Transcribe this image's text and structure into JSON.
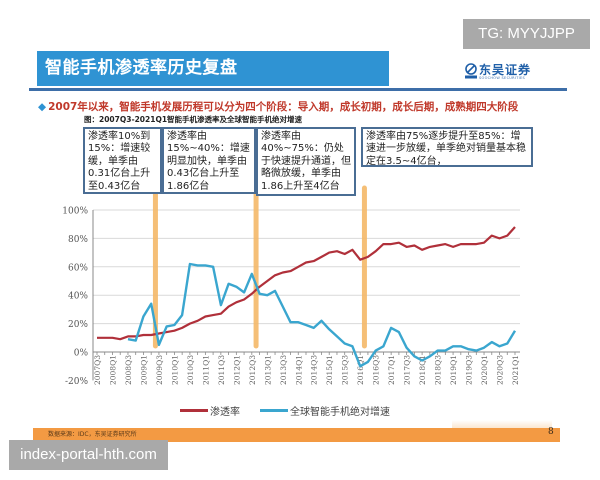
{
  "watermarks": {
    "top": "TG: MYYJJPP",
    "bottom": "index-portal-hth.com"
  },
  "header": {
    "title": "智能手机渗透率历史复盘",
    "logo_cn": "东吴证券",
    "logo_en": "SOOCHOW SECURITIES"
  },
  "headline": {
    "bullet": "◆",
    "text": "2007年以来，智能手机发展历程可以分为四个阶段：导入期，成长初期，成长后期，成熟期四大阶段"
  },
  "subtitle": "图：2007Q3-2021Q1智能手机渗透率及全球智能手机绝对增速",
  "callouts": [
    {
      "text": "渗透率10%到15%：增速较缓，单季由0.31亿台上升至0.43亿台"
    },
    {
      "text": "渗透率由15%~40%：增速明显加快，单季由0.43亿台上升至1.86亿台"
    },
    {
      "text": "渗透率由40%~75%：仍处于快速提升通道，但略微放缓，单季由1.86上升至4亿台"
    },
    {
      "text": "渗透率由75%逐步提升至85%：增速进一步放缓，单季绝对销量基本稳定在3.5~4亿台，"
    }
  ],
  "legend": [
    {
      "label": "渗透率",
      "color": "#b0303a"
    },
    {
      "label": "全球智能手机绝对增速",
      "color": "#3aa6cf"
    }
  ],
  "footer": {
    "source": "数据来源：IDC，东吴证券研究所",
    "page": "8"
  },
  "colors": {
    "title_bg": "#2f93d3",
    "headline": "#c0392b",
    "penetration": "#b0303a",
    "growth": "#3aa6cf",
    "phase_divider": "#f5b969",
    "footer_bar": "#f39a43"
  },
  "chart_data": {
    "type": "line",
    "title": "2007Q3-2021Q1智能手机渗透率及全球智能手机绝对增速",
    "xlabel": "",
    "ylabel": "",
    "ylim": [
      -20,
      100
    ],
    "yticks": [
      "-20%",
      "0%",
      "20%",
      "40%",
      "60%",
      "80%",
      "100%"
    ],
    "grid": true,
    "legend_position": "bottom",
    "x": [
      "2007Q3",
      "2007Q4",
      "2008Q1",
      "2008Q2",
      "2008Q3",
      "2008Q4",
      "2009Q1",
      "2009Q2",
      "2009Q3",
      "2009Q4",
      "2010Q1",
      "2010Q2",
      "2010Q3",
      "2010Q4",
      "2011Q1",
      "2011Q2",
      "2011Q3",
      "2011Q4",
      "2012Q1",
      "2012Q2",
      "2012Q3",
      "2012Q4",
      "2013Q1",
      "2013Q2",
      "2013Q3",
      "2013Q4",
      "2014Q1",
      "2014Q2",
      "2014Q3",
      "2014Q4",
      "2015Q1",
      "2015Q2",
      "2015Q3",
      "2015Q4",
      "2016Q1",
      "2016Q2",
      "2016Q3",
      "2016Q4",
      "2017Q1",
      "2017Q2",
      "2017Q3",
      "2017Q4",
      "2018Q1",
      "2018Q2",
      "2018Q3",
      "2018Q4",
      "2019Q1",
      "2019Q2",
      "2019Q3",
      "2019Q4",
      "2020Q1",
      "2020Q2",
      "2020Q3",
      "2020Q4",
      "2021Q1"
    ],
    "xtick_labels": [
      "2007Q3",
      "2008Q1",
      "2008Q3",
      "2009Q1",
      "2009Q3",
      "2010Q1",
      "2010Q3",
      "2011Q1",
      "2011Q3",
      "2012Q1",
      "2012Q3",
      "2013Q1",
      "2013Q3",
      "2014Q1",
      "2014Q3",
      "2015Q1",
      "2015Q3",
      "2016Q1",
      "2016Q3",
      "2017Q1",
      "2017Q3",
      "2018Q1",
      "2018Q3",
      "2019Q1",
      "2019Q3",
      "2020Q1",
      "2020Q3",
      "2021Q1"
    ],
    "series": [
      {
        "name": "渗透率",
        "values": [
          10,
          10,
          10,
          9,
          11,
          11,
          12,
          12,
          13,
          14,
          15,
          17,
          20,
          22,
          25,
          26,
          27,
          32,
          35,
          37,
          41,
          46,
          50,
          54,
          56,
          57,
          60,
          63,
          64,
          67,
          70,
          71,
          69,
          72,
          65,
          67,
          71,
          76,
          76,
          77,
          74,
          75,
          72,
          74,
          75,
          76,
          74,
          76,
          76,
          76,
          77,
          82,
          80,
          82,
          88
        ]
      },
      {
        "name": "全球智能手机绝对增速",
        "values": [
          null,
          null,
          null,
          null,
          9,
          8,
          25,
          34,
          5,
          18,
          19,
          26,
          62,
          61,
          61,
          60,
          33,
          48,
          46,
          42,
          55,
          41,
          40,
          43,
          32,
          21,
          21,
          19,
          17,
          22,
          16,
          11,
          6,
          4,
          -10,
          -7,
          1,
          4,
          17,
          14,
          3,
          -3,
          -6,
          -3,
          1,
          1,
          4,
          4,
          2,
          1,
          3,
          7,
          4,
          6,
          15
        ]
      }
    ],
    "phase_dividers_after": [
      "2009Q2",
      "2012Q3",
      "2016Q1"
    ],
    "annotations": [
      "渗透率10%到15%：增速较缓，单季由0.31亿台上升至0.43亿台",
      "渗透率由15%~40%：增速明显加快，单季由0.43亿台上升至1.86亿台",
      "渗透率由40%~75%：仍处于快速提升通道，但略微放缓，单季由1.86上升至4亿台",
      "渗透率由75%逐步提升至85%：增速进一步放缓，单季绝对销量基本稳定在3.5~4亿台，"
    ]
  }
}
